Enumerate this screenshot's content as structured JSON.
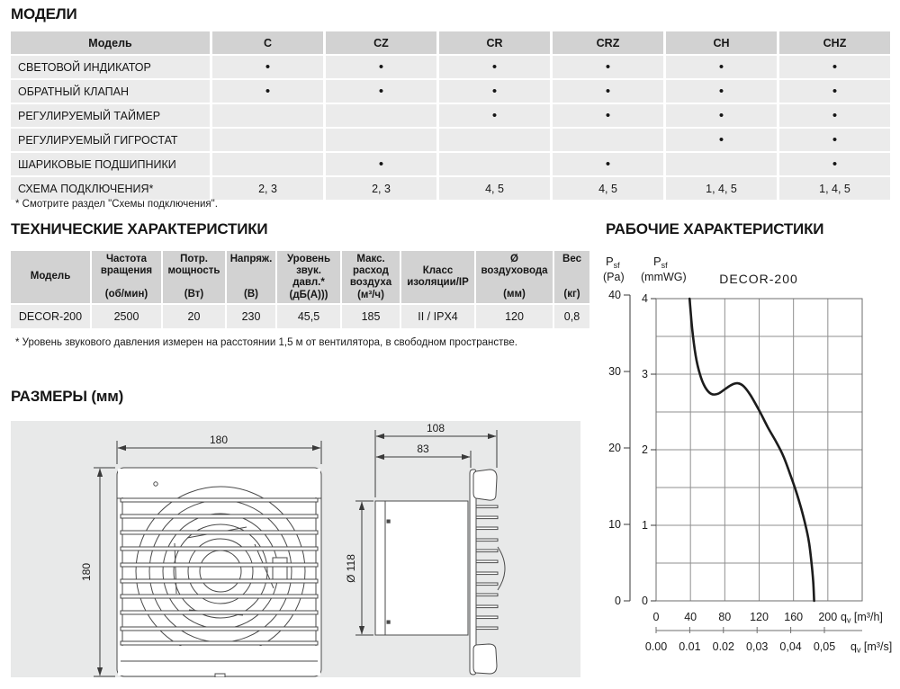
{
  "models": {
    "title": "МОДЕЛИ",
    "footnote": "* Смотрите раздел \"Схемы подключения\".",
    "header": [
      "Модель",
      "C",
      "CZ",
      "CR",
      "CRZ",
      "CH",
      "CHZ"
    ],
    "rows": [
      {
        "label": "СВЕТОВОЙ ИНДИКАТОР",
        "cells": [
          "•",
          "•",
          "•",
          "•",
          "•",
          "•"
        ]
      },
      {
        "label": "ОБРАТНЫЙ КЛАПАН",
        "cells": [
          "•",
          "•",
          "•",
          "•",
          "•",
          "•"
        ]
      },
      {
        "label": "РЕГУЛИРУЕМЫЙ ТАЙМЕР",
        "cells": [
          "",
          "",
          "•",
          "•",
          "•",
          "•"
        ]
      },
      {
        "label": "РЕГУЛИРУЕМЫЙ ГИГРОСТАТ",
        "cells": [
          "",
          "",
          "",
          "",
          "•",
          "•"
        ]
      },
      {
        "label": "ШАРИКОВЫЕ ПОДШИПНИКИ",
        "cells": [
          "",
          "•",
          "",
          "•",
          "",
          "•"
        ]
      },
      {
        "label": "СХЕМА ПОДКЛЮЧЕНИЯ*",
        "cells": [
          "2, 3",
          "2, 3",
          "4, 5",
          "4, 5",
          "1, 4, 5",
          "1, 4, 5"
        ]
      }
    ]
  },
  "tech": {
    "title": "ТЕХНИЧЕСКИЕ ХАРАКТЕРИСТИКИ",
    "footnote": "* Уровень звукового давления измерен на расстоянии 1,5 м от вентилятора, в свободном пространстве.",
    "columns": [
      {
        "label": "Модель",
        "unit": ""
      },
      {
        "label": "Частота вращения",
        "unit": "(об/мин)"
      },
      {
        "label": "Потр. мощность",
        "unit": "(Вт)"
      },
      {
        "label": "Напряж.",
        "unit": "(В)"
      },
      {
        "label": "Уровень звук. давл.*",
        "unit": "(дБ(А)))"
      },
      {
        "label": "Макс. расход воздуха",
        "unit": "(м³/ч)"
      },
      {
        "label": "Класс изоляции/IP",
        "unit": ""
      },
      {
        "label": "Ø воздуховода",
        "unit": "(мм)"
      },
      {
        "label": "Вес",
        "unit": "(кг)"
      }
    ],
    "row": [
      "DECOR-200",
      "2500",
      "20",
      "230",
      "45,5",
      "185",
      "II / IPX4",
      "120",
      "0,8"
    ]
  },
  "dimensions": {
    "title": "РАЗМЕРЫ (мм)",
    "front_width": "180",
    "front_height": "180",
    "side_total": "108",
    "side_duct": "83",
    "duct_diameter": "Ø 118"
  },
  "performance": {
    "title": "РАБОЧИЕ ХАРАКТЕРИСТИКИ"
  },
  "chart_data": {
    "type": "line",
    "title": "DECOR-200",
    "grid": "on",
    "legend": "none",
    "y_axis_pa": {
      "label_main": "P",
      "label_sub": "sf",
      "unit": "(Pa)",
      "ticks": [
        "40",
        "30",
        "20",
        "10",
        "0"
      ],
      "range": [
        0,
        40
      ]
    },
    "y_axis_mmwg": {
      "label_main": "P",
      "label_sub": "sf",
      "unit": "(mmWG)",
      "ticks": [
        "4",
        "3",
        "2",
        "1",
        "0"
      ],
      "range": [
        0,
        4
      ]
    },
    "x_axis": {
      "unit_prefix": "q",
      "unit_sub": "v",
      "unit_rest": " [m³/h]",
      "ticks": [
        "0",
        "40",
        "80",
        "120",
        "160",
        "200"
      ],
      "range": [
        0,
        240
      ],
      "grid_step": 40
    },
    "x_axis_secondary": {
      "unit_prefix": "q",
      "unit_sub": "v",
      "unit_rest": " [m³/s]",
      "ticks": [
        "0.00",
        "0.01",
        "0.02",
        "0,03",
        "0,04",
        "0,05"
      ]
    },
    "series_name": "DECOR-200 fan curve (qv m³/h vs Psf mmWG)",
    "curve": [
      [
        39,
        4.0
      ],
      [
        42,
        3.6
      ],
      [
        46,
        3.25
      ],
      [
        51,
        3.0
      ],
      [
        57,
        2.83
      ],
      [
        64,
        2.74
      ],
      [
        72,
        2.74
      ],
      [
        80,
        2.8
      ],
      [
        88,
        2.86
      ],
      [
        95,
        2.88
      ],
      [
        102,
        2.84
      ],
      [
        110,
        2.72
      ],
      [
        120,
        2.52
      ],
      [
        130,
        2.3
      ],
      [
        140,
        2.1
      ],
      [
        148,
        1.92
      ],
      [
        156,
        1.68
      ],
      [
        163,
        1.45
      ],
      [
        169,
        1.22
      ],
      [
        174,
        1.0
      ],
      [
        178,
        0.78
      ],
      [
        181,
        0.5
      ],
      [
        183,
        0.25
      ],
      [
        184,
        0
      ]
    ]
  }
}
